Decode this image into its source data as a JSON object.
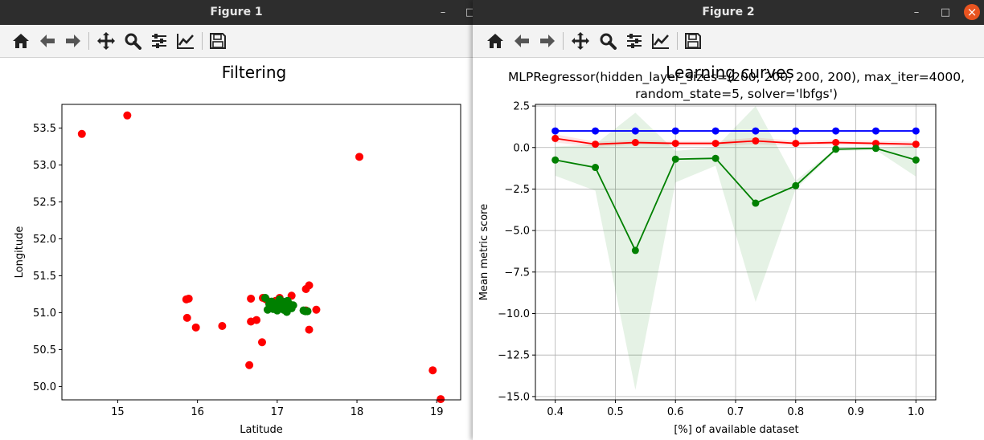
{
  "figure1": {
    "window_title": "Figure 1",
    "toolbar_icons": [
      "home-icon",
      "back-arrow-icon",
      "forward-arrow-icon",
      "pan-move-icon",
      "zoom-magnifier-icon",
      "subplots-config-icon",
      "edit-axes-icon",
      "save-floppy-icon"
    ]
  },
  "figure2": {
    "window_title": "Figure 2",
    "toolbar_icons": [
      "home-icon",
      "back-arrow-icon",
      "forward-arrow-icon",
      "pan-move-icon",
      "zoom-magnifier-icon",
      "subplots-config-icon",
      "edit-axes-icon",
      "save-floppy-icon"
    ],
    "window_buttons": {
      "minimize": "–",
      "maximize": "□",
      "close": "×"
    }
  },
  "colors": {
    "titlebar": "#2d2d2d",
    "close_button": "#e95420",
    "red": "#ff0000",
    "green": "#008000",
    "blue": "#0000ff"
  },
  "chart_data": [
    {
      "type": "scatter",
      "title": "Filtering",
      "xlabel": "Latitude",
      "ylabel": "Longitude",
      "xlim": [
        14.3,
        19.3
      ],
      "ylim": [
        49.82,
        53.82
      ],
      "xticks": [
        15,
        16,
        17,
        18,
        19
      ],
      "yticks": [
        50.0,
        50.5,
        51.0,
        51.5,
        52.0,
        52.5,
        53.0,
        53.5
      ],
      "grid": false,
      "series": [
        {
          "color": "#ff0000",
          "points": [
            [
              14.55,
              53.42
            ],
            [
              15.12,
              53.67
            ],
            [
              18.03,
              53.11
            ],
            [
              15.86,
              51.18
            ],
            [
              15.89,
              51.19
            ],
            [
              15.87,
              50.93
            ],
            [
              15.98,
              50.8
            ],
            [
              16.31,
              50.82
            ],
            [
              16.67,
              51.19
            ],
            [
              16.67,
              50.88
            ],
            [
              16.74,
              50.9
            ],
            [
              16.81,
              50.6
            ],
            [
              16.65,
              50.29
            ],
            [
              16.82,
              51.2
            ],
            [
              16.86,
              51.18
            ],
            [
              16.98,
              51.16
            ],
            [
              17.03,
              51.2
            ],
            [
              17.18,
              51.23
            ],
            [
              17.36,
              51.32
            ],
            [
              17.4,
              51.37
            ],
            [
              17.36,
              51.03
            ],
            [
              17.4,
              50.77
            ],
            [
              17.49,
              51.04
            ],
            [
              18.95,
              50.22
            ],
            [
              19.05,
              49.83
            ]
          ]
        },
        {
          "color": "#008000",
          "points": [
            [
              16.85,
              51.2
            ],
            [
              16.9,
              51.12
            ],
            [
              16.92,
              51.08
            ],
            [
              16.95,
              51.05
            ],
            [
              16.98,
              51.1
            ],
            [
              17.0,
              51.13
            ],
            [
              17.02,
              51.07
            ],
            [
              17.05,
              51.11
            ],
            [
              17.08,
              51.04
            ],
            [
              17.1,
              51.09
            ],
            [
              17.12,
              51.01
            ],
            [
              17.15,
              51.12
            ],
            [
              17.18,
              51.06
            ],
            [
              17.2,
              51.1
            ],
            [
              16.93,
              51.15
            ],
            [
              17.03,
              51.18
            ],
            [
              17.07,
              51.15
            ],
            [
              17.33,
              51.03
            ],
            [
              17.35,
              51.02
            ],
            [
              17.38,
              51.02
            ],
            [
              16.88,
              51.04
            ],
            [
              17.0,
              51.03
            ],
            [
              17.13,
              51.16
            ]
          ]
        }
      ]
    },
    {
      "type": "line",
      "title": "Learning curves",
      "subtitle_lines": [
        "MLPRegressor(hidden_layer_sizes=(200, 200, 200, 200), max_iter=4000,",
        "random_state=5, solver='lbfgs')"
      ],
      "xlabel": "[%] of available dataset",
      "ylabel": "Mean metric score",
      "xlim": [
        0.367,
        1.033
      ],
      "ylim": [
        -15.2,
        2.6
      ],
      "xticks": [
        "0.4",
        "0.5",
        "0.6",
        "0.7",
        "0.8",
        "0.9",
        "1.0"
      ],
      "yticks": [
        "2.5",
        "0.0",
        "−2.5",
        "−5.0",
        "−7.5",
        "−10.0",
        "−12.5",
        "−15.0"
      ],
      "grid": true,
      "x": [
        0.4,
        0.4667,
        0.5333,
        0.6,
        0.6667,
        0.7333,
        0.8,
        0.8667,
        0.9333,
        1.0
      ],
      "series": [
        {
          "color": "#0000ff",
          "values": [
            1.0,
            1.0,
            1.0,
            1.0,
            1.0,
            1.0,
            1.0,
            1.0,
            1.0,
            1.0
          ],
          "band_low": [
            0.95,
            0.95,
            0.95,
            0.95,
            0.95,
            0.95,
            0.95,
            0.95,
            0.95,
            0.95
          ],
          "band_high": [
            1.05,
            1.05,
            1.05,
            1.05,
            1.05,
            1.05,
            1.05,
            1.05,
            1.05,
            1.05
          ]
        },
        {
          "color": "#ff0000",
          "values": [
            0.55,
            0.2,
            0.3,
            0.25,
            0.25,
            0.4,
            0.25,
            0.3,
            0.25,
            0.2
          ],
          "band_low": [
            0.3,
            0.05,
            0.15,
            0.1,
            0.1,
            0.2,
            0.1,
            0.15,
            0.1,
            0.05
          ],
          "band_high": [
            0.8,
            0.35,
            0.45,
            0.4,
            0.4,
            0.6,
            0.4,
            0.45,
            0.4,
            0.35
          ]
        },
        {
          "color": "#008000",
          "values": [
            -0.75,
            -1.2,
            -6.2,
            -0.7,
            -0.65,
            -3.35,
            -2.3,
            -0.1,
            -0.05,
            -0.75
          ],
          "band_low": [
            -1.7,
            -2.6,
            -14.6,
            -2.1,
            -1.1,
            -9.3,
            -2.5,
            -0.2,
            -0.15,
            -1.75
          ],
          "band_high": [
            0.05,
            0.2,
            2.1,
            -0.2,
            0.0,
            2.5,
            -2.0,
            -0.05,
            0.0,
            0.1
          ]
        }
      ]
    }
  ]
}
